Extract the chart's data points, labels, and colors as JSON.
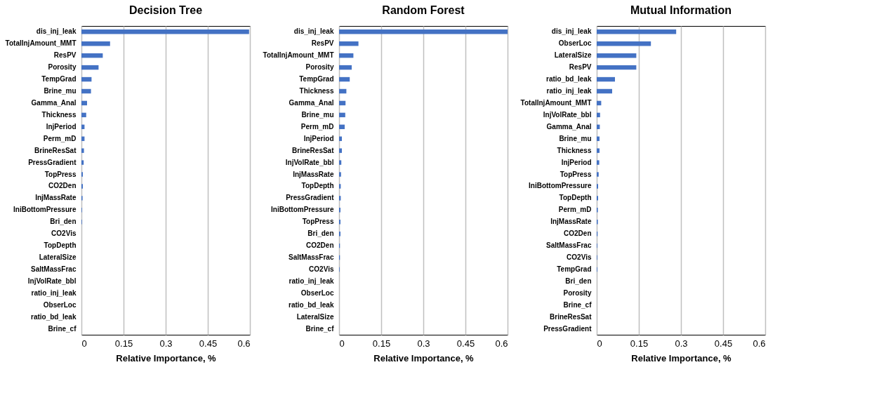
{
  "chart_data": [
    {
      "type": "bar",
      "orientation": "horizontal",
      "title": "Decision Tree",
      "xlabel": "Relative Importance, %",
      "color": "#4472c4",
      "grid": "x",
      "xlim": [
        0,
        0.6
      ],
      "xticks": [
        0,
        0.15,
        0.3,
        0.45,
        0.6
      ],
      "categories": [
        "dis_inj_leak",
        "TotalInjAmount_MMT",
        "ResPV",
        "Porosity",
        "TempGrad",
        "Brine_mu",
        "Gamma_Anal",
        "Thickness",
        "InjPeriod",
        "Perm_mD",
        "BrineResSat",
        "PressGradient",
        "TopPress",
        "CO2Den",
        "InjMassRate",
        "IniBottomPressure",
        "Bri_den",
        "CO2Vis",
        "TopDepth",
        "LateralSize",
        "SaltMassFrac",
        "InjVolRate_bbl",
        "ratio_inj_leak",
        "ObserLoc",
        "ratio_bd_leak",
        "Brine_cf"
      ],
      "values": [
        0.597,
        0.102,
        0.076,
        0.061,
        0.036,
        0.034,
        0.02,
        0.017,
        0.011,
        0.011,
        0.009,
        0.008,
        0.005,
        0.005,
        0.004,
        0.002,
        0.002,
        0,
        0,
        0,
        0,
        0,
        0,
        0,
        0,
        0
      ]
    },
    {
      "type": "bar",
      "orientation": "horizontal",
      "title": "Random Forest",
      "xlabel": "Relative Importance, %",
      "color": "#4472c4",
      "grid": "x",
      "xlim": [
        0,
        0.6
      ],
      "xticks": [
        0,
        0.15,
        0.3,
        0.45,
        0.6
      ],
      "categories": [
        "dis_inj_leak",
        "ResPV",
        "TotalInjAmount_MMT",
        "Porosity",
        "TempGrad",
        "Thickness",
        "Gamma_Anal",
        "Brine_mu",
        "Perm_mD",
        "InjPeriod",
        "BrineResSat",
        "InjVolRate_bbl",
        "InjMassRate",
        "TopDepth",
        "PressGradient",
        "IniBottomPressure",
        "TopPress",
        "Bri_den",
        "CO2Den",
        "SaltMassFrac",
        "CO2Vis",
        "ratio_inj_leak",
        "ObserLoc",
        "ratio_bd_leak",
        "LateralSize",
        "Brine_cf"
      ],
      "values": [
        0.6,
        0.069,
        0.051,
        0.045,
        0.038,
        0.026,
        0.023,
        0.022,
        0.02,
        0.01,
        0.01,
        0.008,
        0.007,
        0.006,
        0.006,
        0.005,
        0.005,
        0.005,
        0.003,
        0.003,
        0.002,
        0,
        0,
        0,
        0,
        0
      ]
    },
    {
      "type": "bar",
      "orientation": "horizontal",
      "title": "Mutual Information",
      "xlabel": "Relative Importance, %",
      "color": "#4472c4",
      "grid": "x",
      "xlim": [
        0,
        0.6
      ],
      "xticks": [
        0,
        0.15,
        0.3,
        0.45,
        0.6
      ],
      "categories": [
        "dis_inj_leak",
        "ObserLoc",
        "LateralSize",
        "ResPV",
        "ratio_bd_leak",
        "ratio_inj_leak",
        "TotalInjAmount_MMT",
        "InjVolRate_bbl",
        "Gamma_Anal",
        "Brine_mu",
        "Thickness",
        "InjPeriod",
        "TopPress",
        "IniBottomPressure",
        "TopDepth",
        "Perm_mD",
        "InjMassRate",
        "CO2Den",
        "SaltMassFrac",
        "CO2Vis",
        "TempGrad",
        "Bri_den",
        "Porosity",
        "Brine_cf",
        "BrineResSat",
        "PressGradient"
      ],
      "values": [
        0.283,
        0.193,
        0.141,
        0.141,
        0.065,
        0.055,
        0.016,
        0.012,
        0.011,
        0.01,
        0.01,
        0.009,
        0.007,
        0.005,
        0.005,
        0.004,
        0.004,
        0.003,
        0.002,
        0.002,
        0.002,
        0,
        0,
        0,
        0,
        0
      ]
    }
  ]
}
